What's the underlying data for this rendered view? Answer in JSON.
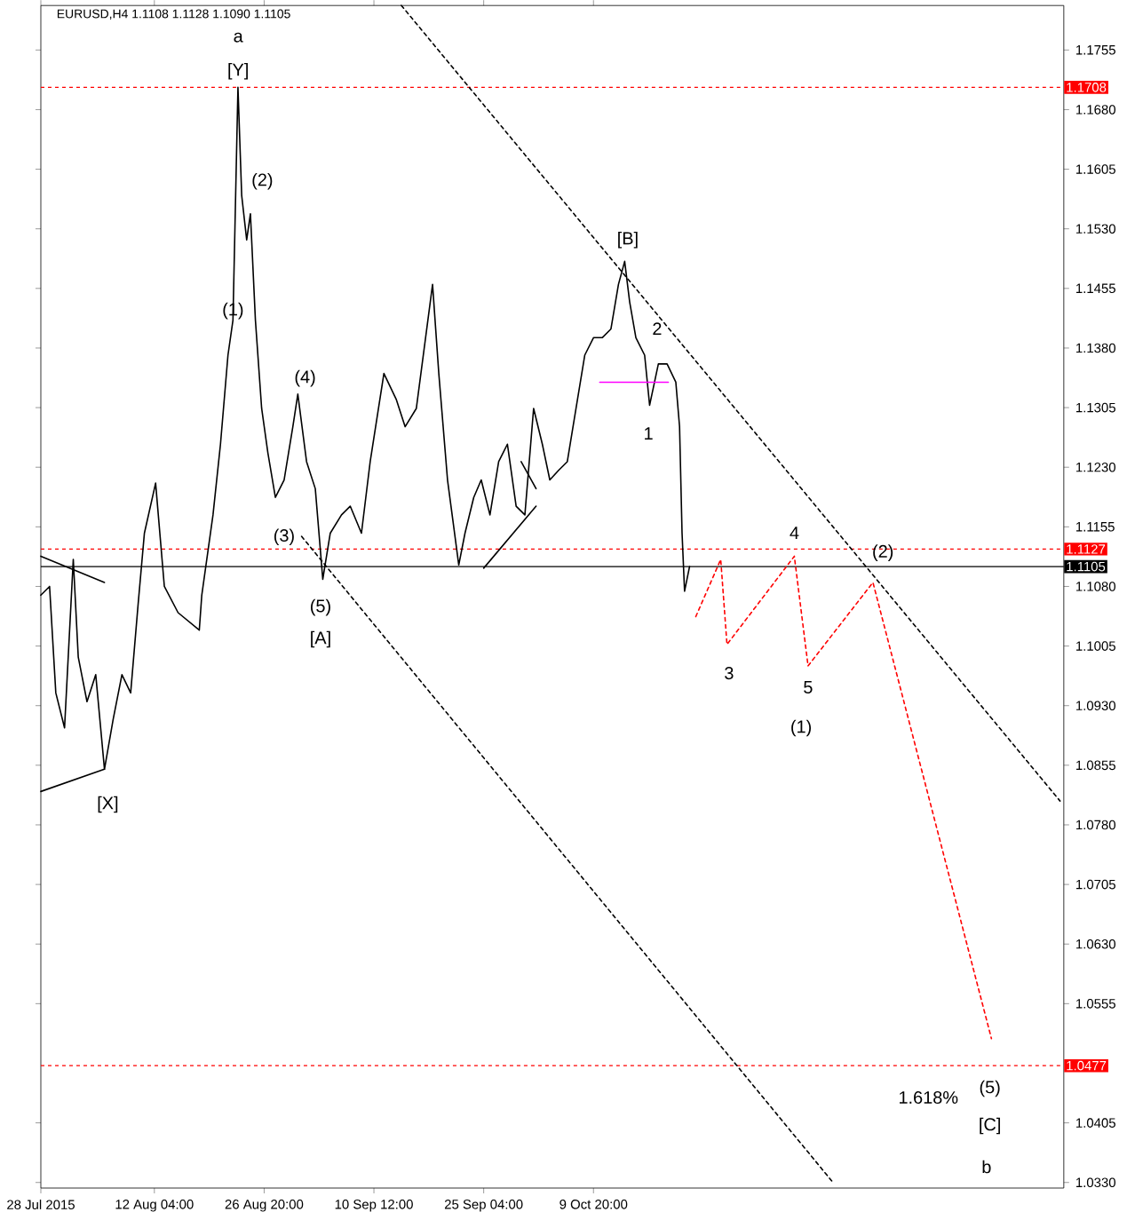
{
  "chart_data": {
    "type": "line",
    "title": "EURUSD,H4 1.1108 1.1128 1.1090 1.1105",
    "xlim": [
      "2015-07-28T00:00",
      "2015-12-11T16:00"
    ],
    "ylim": [
      1.0323,
      1.1811
    ],
    "xticks": [
      {
        "value": "2015-07-28T00:00",
        "label": "28 Jul 2015"
      },
      {
        "value": "2015-08-12T04:00",
        "label": "12 Aug 04:00"
      },
      {
        "value": "2015-08-26T20:00",
        "label": "26 Aug 20:00"
      },
      {
        "value": "2015-09-10T12:00",
        "label": "10 Sep 12:00"
      },
      {
        "value": "2015-09-25T04:00",
        "label": "25 Sep 04:00"
      },
      {
        "value": "2015-10-09T20:00",
        "label": "9 Oct 20:00"
      }
    ],
    "yticks": [
      {
        "value": 1.1755,
        "label": "1.1755"
      },
      {
        "value": 1.168,
        "label": "1.1680"
      },
      {
        "value": 1.1605,
        "label": "1.1605"
      },
      {
        "value": 1.153,
        "label": "1.1530"
      },
      {
        "value": 1.1455,
        "label": "1.1455"
      },
      {
        "value": 1.138,
        "label": "1.1380"
      },
      {
        "value": 1.1305,
        "label": "1.1305"
      },
      {
        "value": 1.123,
        "label": "1.1230"
      },
      {
        "value": 1.1155,
        "label": "1.1155"
      },
      {
        "value": 1.108,
        "label": "1.1080"
      },
      {
        "value": 1.1005,
        "label": "1.1005"
      },
      {
        "value": 1.093,
        "label": "1.0930"
      },
      {
        "value": 1.0855,
        "label": "1.0855"
      },
      {
        "value": 1.078,
        "label": "1.0780"
      },
      {
        "value": 1.0705,
        "label": "1.0705"
      },
      {
        "value": 1.063,
        "label": "1.0630"
      },
      {
        "value": 1.0555,
        "label": "1.0555"
      },
      {
        "value": 1.0405,
        "label": "1.0405"
      },
      {
        "value": 1.033,
        "label": "1.0330"
      }
    ],
    "marker": "none",
    "grid": false,
    "series": [
      {
        "color": "#000000",
        "line_style": "solid",
        "x": [
          "2015-07-28T00:00",
          "2015-07-29T04:00",
          "2015-07-30T00:00",
          "2015-07-31T04:00",
          "2015-08-01T08:00",
          "2015-08-02T00:00",
          "2015-08-03T04:00",
          "2015-08-04T08:00",
          "2015-08-05T12:00",
          "2015-08-06T16:00",
          "2015-08-07T20:00",
          "2015-08-09T00:00",
          "2015-08-10T00:00",
          "2015-08-10T20:00",
          "2015-08-12T08:00",
          "2015-08-13T12:00",
          "2015-08-15T08:00",
          "2015-08-18T04:00",
          "2015-08-18T12:00",
          "2015-08-20T00:00",
          "2015-08-21T00:00",
          "2015-08-22T00:00",
          "2015-08-22T16:00",
          "2015-08-23T08:00",
          "2015-08-23T20:00",
          "2015-08-24T12:00",
          "2015-08-25T00:00",
          "2015-08-25T16:00",
          "2015-08-26T12:00",
          "2015-08-27T08:00",
          "2015-08-28T08:00",
          "2015-08-29T12:00",
          "2015-08-30T16:00",
          "2015-08-31T08:00",
          "2015-09-01T12:00",
          "2015-09-02T16:00",
          "2015-09-03T16:00",
          "2015-09-04T16:00",
          "2015-09-06T04:00",
          "2015-09-07T08:00",
          "2015-09-08T20:00",
          "2015-09-10T00:00",
          "2015-09-11T20:00",
          "2015-09-13T12:00",
          "2015-09-14T16:00",
          "2015-09-16T04:00",
          "2015-09-18T08:00",
          "2015-09-19T04:00",
          "2015-09-20T08:00",
          "2015-09-21T20:00",
          "2015-09-22T16:00",
          "2015-09-23T20:00",
          "2015-09-24T20:00",
          "2015-09-26T00:00",
          "2015-09-27T04:00",
          "2015-09-28T08:00",
          "2015-09-29T12:00",
          "2015-09-30T16:00",
          "2015-10-01T20:00",
          "2015-10-03T00:00",
          "2015-10-04T00:00",
          "2015-10-05T04:00",
          "2015-10-06T08:00",
          "2015-10-07T12:00",
          "2015-10-08T16:00",
          "2015-10-09T20:00",
          "2015-10-11T00:00",
          "2015-10-12T04:00",
          "2015-10-13T04:00",
          "2015-10-14T00:00",
          "2015-10-14T16:00",
          "2015-10-15T12:00",
          "2015-10-16T16:00",
          "2015-10-17T08:00",
          "2015-10-18T12:00",
          "2015-10-19T16:00",
          "2015-10-20T20:00",
          "2015-10-21T08:00",
          "2015-10-21T16:00",
          "2015-10-22T00:00",
          "2015-10-22T16:00"
        ],
        "values": [
          1.1069,
          1.108,
          1.0946,
          1.0902,
          1.1114,
          1.0991,
          1.0935,
          1.0969,
          1.085,
          1.0913,
          1.0969,
          1.0946,
          1.1058,
          1.1147,
          1.121,
          1.108,
          1.1047,
          1.1025,
          1.1069,
          1.117,
          1.1259,
          1.1371,
          1.1415,
          1.1708,
          1.1572,
          1.1516,
          1.1549,
          1.1415,
          1.1304,
          1.1248,
          1.1192,
          1.1214,
          1.1281,
          1.1322,
          1.1237,
          1.1203,
          1.1089,
          1.1147,
          1.117,
          1.1181,
          1.1147,
          1.1237,
          1.1348,
          1.1315,
          1.1281,
          1.1304,
          1.146,
          1.1348,
          1.1214,
          1.1107,
          1.1147,
          1.1192,
          1.1214,
          1.117,
          1.1237,
          1.1259,
          1.1181,
          1.117,
          1.1304,
          1.1259,
          1.1214,
          1.1226,
          1.1237,
          1.1304,
          1.1371,
          1.1393,
          1.1393,
          1.1404,
          1.146,
          1.1489,
          1.1438,
          1.1393,
          1.1371,
          1.1308,
          1.136,
          1.136,
          1.1337,
          1.1281,
          1.1147,
          1.1074,
          1.1105
        ]
      },
      {
        "color": "#ff0000",
        "line_style": "dashed",
        "x": [
          "2015-10-23T12:00",
          "2015-10-26T20:00",
          "2015-10-27T16:00",
          "2015-11-05T16:00",
          "2015-11-07T12:00",
          "2015-11-16T04:00",
          "2015-12-02T00:00"
        ],
        "values": [
          1.1042,
          1.1114,
          1.1007,
          1.1118,
          1.098,
          1.1085,
          1.0511
        ]
      },
      {
        "color": "#000000",
        "line_style": "dashed",
        "x": [
          "2015-09-14T04:00",
          "2015-12-11T04:00"
        ],
        "values": [
          1.1811,
          1.081
        ]
      },
      {
        "color": "#000000",
        "line_style": "dashed",
        "x": [
          "2015-08-31T20:00",
          "2015-11-10T20:00"
        ],
        "values": [
          1.1143,
          1.033
        ]
      },
      {
        "color": "#000000",
        "line_style": "solid",
        "x": [
          "2015-07-28T00:00",
          "2015-08-05T12:00"
        ],
        "values": [
          1.1118,
          1.1085
        ]
      },
      {
        "color": "#000000",
        "line_style": "solid",
        "x": [
          "2015-07-28T00:00",
          "2015-08-05T12:00"
        ],
        "values": [
          1.0822,
          1.085
        ]
      },
      {
        "color": "#000000",
        "line_style": "solid",
        "x": [
          "2015-09-25T04:00",
          "2015-10-02T04:00"
        ],
        "values": [
          1.1103,
          1.1181
        ]
      },
      {
        "color": "#000000",
        "line_style": "solid",
        "x": [
          "2015-09-30T04:00",
          "2015-10-02T04:00"
        ],
        "values": [
          1.1237,
          1.1203
        ]
      },
      {
        "color": "#ff00ff",
        "line_style": "solid",
        "x": [
          "2015-10-10T16:00",
          "2015-10-19T20:00"
        ],
        "values": [
          1.1337,
          1.1337
        ]
      }
    ],
    "ref_lines": [
      {
        "axis": "y",
        "value": 1.1708,
        "label": "1.1708",
        "color": "#ff0000",
        "line_style": "dashed"
      },
      {
        "axis": "y",
        "value": 1.1127,
        "label": "1.1127",
        "color": "#ff0000",
        "line_style": "dashed"
      },
      {
        "axis": "y",
        "value": 1.1105,
        "label": "1.1105",
        "color": "#000000",
        "line_style": "solid"
      },
      {
        "axis": "y",
        "value": 1.0477,
        "label": "1.0477",
        "color": "#ff0000",
        "line_style": "dashed"
      }
    ],
    "annotations": [
      "a",
      "[Y]",
      "(2)",
      "(1)",
      "(4)",
      {
        "text": "(3)",
        "x": "2015-08-29T12:00",
        "y": 1.1127
      },
      "(5)",
      "[A]",
      "[X]",
      "[B]",
      "2",
      "1",
      "4",
      "3",
      "5",
      "(1)",
      {
        "text": "(2)",
        "x": "2015-11-17T12:00",
        "y": 1.1107
      },
      "1.618%",
      "(5)",
      "[C]",
      "b"
    ]
  }
}
